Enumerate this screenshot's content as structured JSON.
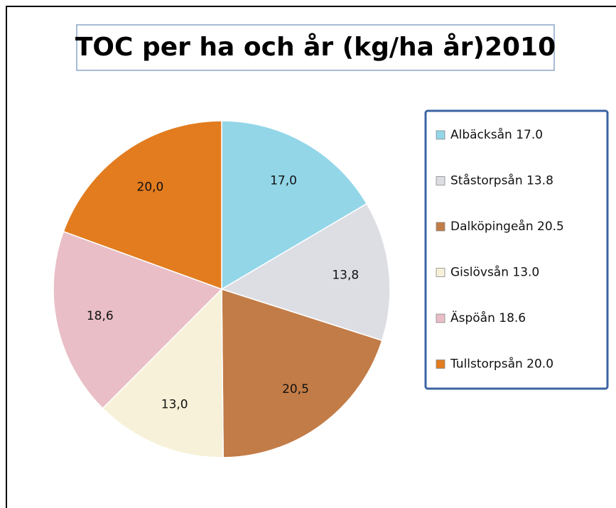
{
  "chart_data": {
    "type": "pie",
    "title": "TOC per ha och år (kg/ha år)2010",
    "categories": [
      "Albäcksån 17.0",
      "Ståstorpsån 13.8",
      "Dalköpingeån 20.5",
      "Gislövsån 13.0",
      "Äspöån 18.6",
      "Tullstorpsån 20.0"
    ],
    "values": [
      17.0,
      13.8,
      20.5,
      13.0,
      18.6,
      20.0
    ],
    "value_labels": [
      "17,0",
      "13,8",
      "20,5",
      "13,0",
      "18,6",
      "20,0"
    ],
    "colors": [
      "#93d6e8",
      "#dddee4",
      "#c27c47",
      "#f7f1d9",
      "#e9bec6",
      "#e27c1f"
    ],
    "legend": "right"
  }
}
